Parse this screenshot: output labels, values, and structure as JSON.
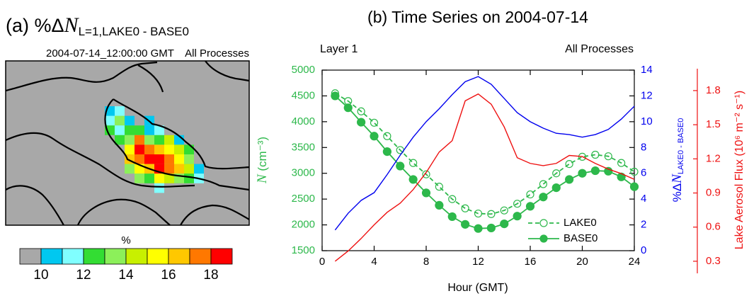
{
  "chart_data": [
    {
      "type": "map",
      "title": {
        "prefix": "(a) %Δ",
        "symbol": "N",
        "subscript": "L=1,LAKE0 - BASE0"
      },
      "subtitle_left": "2004-07-14_12:00:00 GMT",
      "subtitle_right": "All Processes",
      "values": [
        [
          10.5,
          11.5,
          null,
          null,
          null,
          null,
          null,
          null,
          null,
          null
        ],
        [
          11.5,
          13.5,
          10.5,
          null,
          10.5,
          null,
          null,
          null,
          null,
          null
        ],
        [
          12.5,
          11.5,
          12.5,
          12.5,
          10.5,
          11.5,
          null,
          null,
          null,
          null
        ],
        [
          null,
          12.5,
          13.5,
          17.5,
          13.5,
          12.5,
          14.5,
          10.5,
          null,
          null
        ],
        [
          null,
          null,
          15.5,
          18.5,
          17.5,
          16.5,
          15.5,
          14.5,
          12.5,
          null
        ],
        [
          null,
          null,
          16.5,
          17.5,
          18.5,
          18.5,
          17.5,
          15.5,
          13.5,
          null
        ],
        [
          null,
          null,
          13.5,
          15.5,
          16.5,
          18.5,
          17.5,
          16.5,
          14.5,
          10.5
        ],
        [
          null,
          null,
          null,
          13.5,
          12.5,
          15.5,
          14.5,
          13.5,
          12.5,
          11.5
        ],
        [
          null,
          null,
          null,
          null,
          null,
          11.5,
          null,
          null,
          null,
          null
        ]
      ],
      "colorbar": {
        "label": "%",
        "levels": [
          10,
          11,
          12,
          13,
          14,
          15,
          16,
          17,
          18
        ],
        "ticks": [
          10,
          12,
          14,
          16,
          18
        ],
        "colors": [
          "#a8a8a8",
          "#00c8f0",
          "#80ffff",
          "#33dd33",
          "#8cf05a",
          "#c8f000",
          "#ffff00",
          "#ffc800",
          "#ff7800",
          "#ff0000"
        ]
      }
    },
    {
      "type": "line",
      "title": "(b) Time Series on 2004-07-14",
      "subtitle_left": "Layer 1",
      "subtitle_right": "All Processes",
      "xlabel": "Hour (GMT)",
      "ylabel": {
        "symbol": "N",
        "unit": " (cm⁻³)"
      },
      "y2label": {
        "prefix": "%Δ",
        "symbol": "N",
        "subscript": "LAKE0 - BASE0"
      },
      "y3label": "Lake Aerosol Flux (10⁶ m⁻² s⁻¹)",
      "x": [
        1,
        2,
        3,
        4,
        5,
        6,
        7,
        8,
        9,
        10,
        11,
        12,
        13,
        14,
        15,
        16,
        17,
        18,
        19,
        20,
        21,
        22,
        23,
        24
      ],
      "xlim": [
        0,
        24
      ],
      "xticks": [
        0,
        4,
        8,
        12,
        16,
        20,
        24
      ],
      "ylim": [
        1500,
        5000
      ],
      "yticks": [
        1500,
        2000,
        2500,
        3000,
        3500,
        4000,
        4500,
        5000
      ],
      "y2lim": [
        0,
        14
      ],
      "y2ticks": [
        0,
        2,
        4,
        6,
        8,
        10,
        12,
        14
      ],
      "y3lim": [
        0.2,
        1.98
      ],
      "y3ticks": [
        0.3,
        0.6,
        0.9,
        1.2,
        1.5,
        1.8
      ],
      "axis_colors": {
        "y": "#2db84b",
        "y2": "#0000ee",
        "y3": "#ee1111"
      },
      "legend": "lower right",
      "series": [
        {
          "name": "LAKE0",
          "color": "#2db84b",
          "style": "dashed",
          "marker": "open",
          "values": [
            4550,
            4400,
            4200,
            3980,
            3720,
            3450,
            3200,
            2980,
            2740,
            2500,
            2320,
            2220,
            2210,
            2280,
            2410,
            2590,
            2790,
            3000,
            3180,
            3320,
            3360,
            3330,
            3200,
            3030
          ]
        },
        {
          "name": "BASE0",
          "color": "#2db84b",
          "style": "solid",
          "marker": "filled",
          "values": [
            4500,
            4270,
            3990,
            3720,
            3420,
            3140,
            2880,
            2620,
            2380,
            2160,
            2010,
            1930,
            1940,
            2020,
            2170,
            2360,
            2540,
            2720,
            2880,
            3000,
            3050,
            3040,
            2930,
            2740
          ]
        },
        {
          "axis": "y2",
          "color": "#0000ee",
          "style": "solid",
          "values": [
            1.6,
            2.9,
            3.9,
            4.5,
            5.9,
            7.4,
            8.8,
            10.0,
            11.0,
            12.1,
            13.1,
            13.5,
            12.9,
            11.8,
            10.7,
            10.0,
            9.5,
            9.1,
            9.0,
            8.8,
            9.0,
            9.4,
            10.2,
            11.2
          ]
        },
        {
          "axis": "y3",
          "color": "#ee1111",
          "style": "solid",
          "values": [
            0.3,
            0.39,
            0.5,
            0.62,
            0.73,
            0.81,
            0.93,
            1.08,
            1.26,
            1.36,
            1.71,
            1.77,
            1.68,
            1.48,
            1.21,
            1.16,
            1.14,
            1.16,
            1.23,
            1.22,
            1.16,
            1.11,
            1.07,
            1.02
          ]
        }
      ]
    }
  ]
}
